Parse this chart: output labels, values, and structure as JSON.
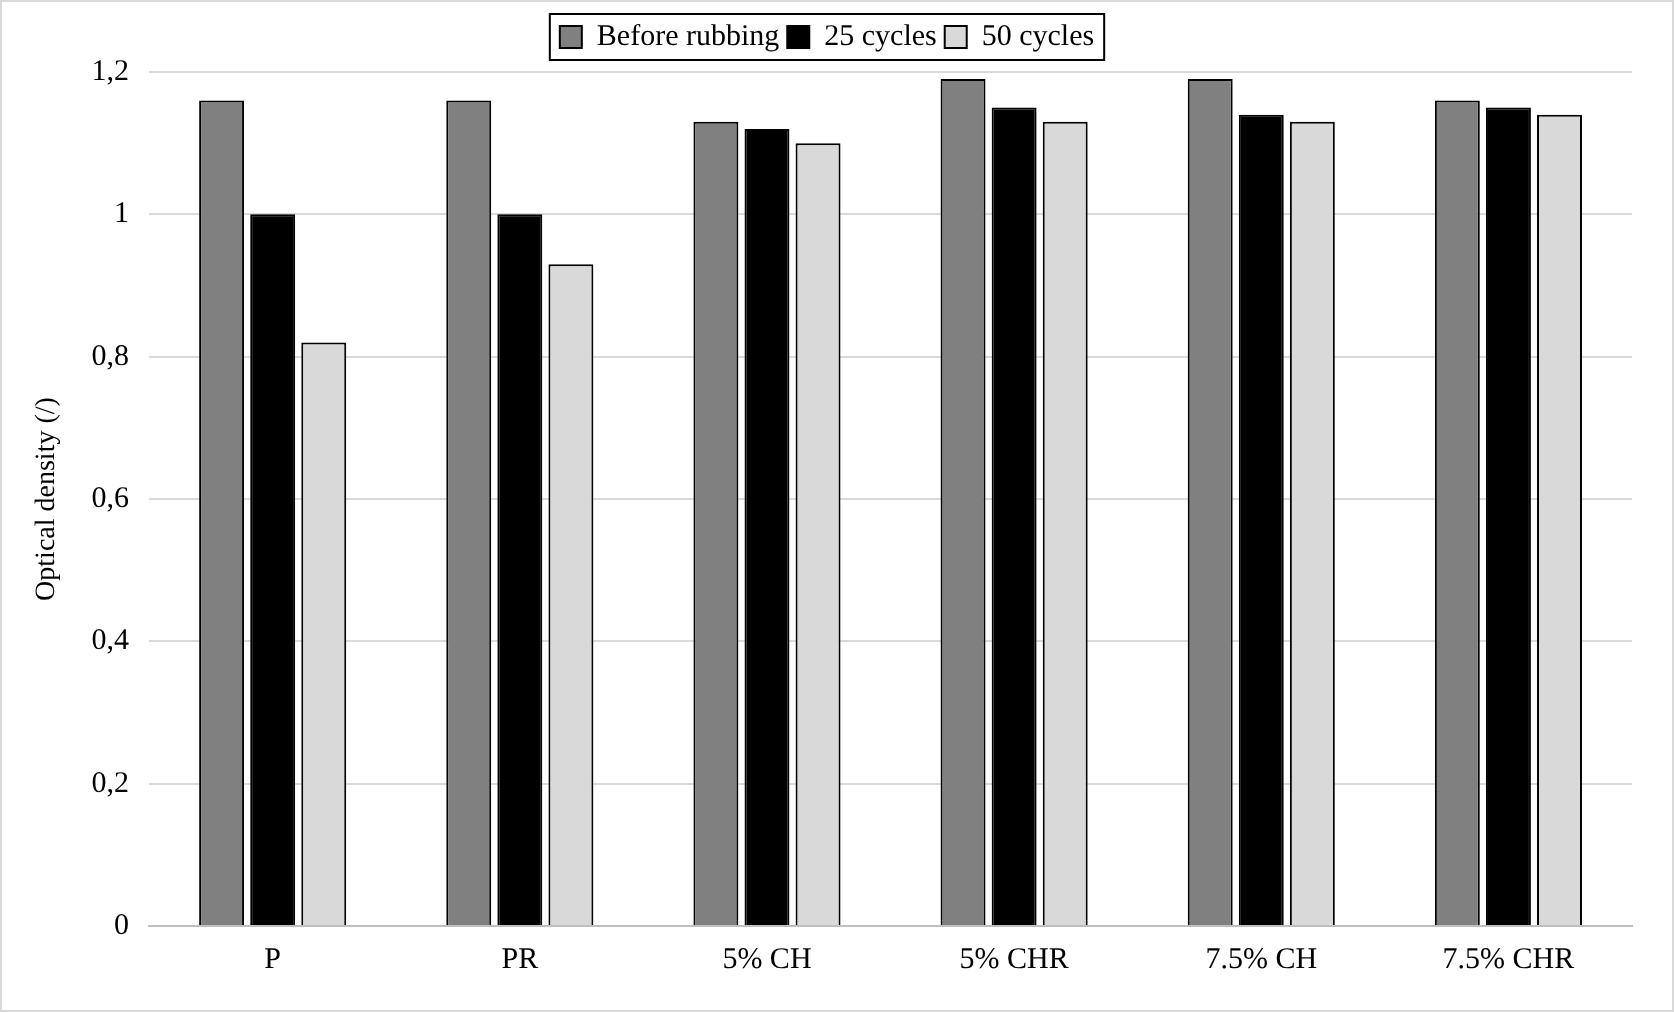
{
  "chart_data": {
    "type": "bar",
    "ylabel": "Optical density (/)",
    "categories": [
      "P",
      "PR",
      "5% CH",
      "5% CHR",
      "7.5% CH",
      "7.5% CHR"
    ],
    "series": [
      {
        "name": "Before rubbing",
        "color": "#808080",
        "values": [
          1.16,
          1.16,
          1.13,
          1.19,
          1.19,
          1.16
        ]
      },
      {
        "name": "25 cycles",
        "color": "#000000",
        "values": [
          1.0,
          1.0,
          1.12,
          1.15,
          1.14,
          1.15
        ]
      },
      {
        "name": "50 cycles",
        "color": "#d9d9d9",
        "values": [
          0.82,
          0.93,
          1.1,
          1.13,
          1.13,
          1.14
        ]
      }
    ],
    "ylim": [
      0,
      1.2
    ],
    "yticks": [
      0,
      {
        "value": 0.2,
        "label": "0,2"
      },
      {
        "value": 0.4,
        "label": "0,4"
      },
      {
        "value": 0.6,
        "label": "0,6"
      },
      {
        "value": 0.8,
        "label": "0,8"
      },
      1,
      {
        "value": 1.2,
        "label": "1,2"
      }
    ],
    "grid": "y",
    "legend": "top"
  }
}
